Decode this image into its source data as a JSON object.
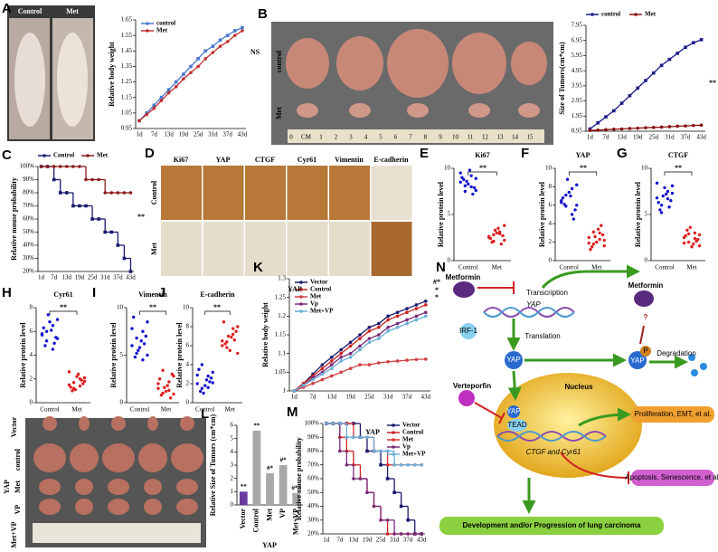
{
  "chart_data": [
    {
      "panel": "A",
      "type": "line",
      "ylabel": "Relative body weight",
      "categories": [
        "1d",
        null,
        "7d",
        null,
        "13d",
        null,
        "19d",
        null,
        "25d",
        null,
        "31d",
        null,
        "37d",
        null,
        "43d"
      ],
      "series": [
        {
          "name": "control",
          "color": "#4a78d0",
          "marker": "square",
          "values": [
            1.0,
            1.05,
            1.1,
            1.15,
            1.2,
            1.25,
            1.3,
            1.35,
            1.4,
            1.45,
            1.48,
            1.52,
            1.55,
            1.58,
            1.6
          ]
        },
        {
          "name": "Met",
          "color": "#c03030",
          "marker": "circle",
          "values": [
            1.0,
            1.04,
            1.08,
            1.13,
            1.18,
            1.22,
            1.27,
            1.31,
            1.35,
            1.4,
            1.44,
            1.48,
            1.51,
            1.55,
            1.58
          ]
        }
      ],
      "ylim": [
        0.95,
        1.65
      ],
      "yticks": [
        0.95,
        1.05,
        1.15,
        1.25,
        1.35,
        1.45,
        1.55,
        1.65
      ],
      "legend": "upper left",
      "annotations": [
        "NS"
      ]
    },
    {
      "panel": "B",
      "type": "line",
      "ylabel": "Size of Tumors(cm*cm)",
      "categories": [
        "1d",
        null,
        "7d",
        null,
        "13d",
        null,
        "19d",
        null,
        "25d",
        null,
        "31d",
        null,
        "37d",
        null,
        "43d"
      ],
      "series": [
        {
          "name": "control",
          "color": "#1a1a8a",
          "marker": "square",
          "values": [
            1.1,
            1.5,
            1.9,
            2.3,
            2.8,
            3.3,
            3.8,
            4.3,
            4.8,
            5.3,
            5.7,
            6.1,
            6.5,
            6.8,
            7.0
          ]
        },
        {
          "name": "Met",
          "color": "#8a1010",
          "marker": "circle",
          "values": [
            1.0,
            1.02,
            1.05,
            1.08,
            1.1,
            1.13,
            1.15,
            1.18,
            1.2,
            1.22,
            1.25,
            1.28,
            1.3,
            1.33,
            1.35
          ]
        }
      ],
      "ylim": [
        0.95,
        7.95
      ],
      "yticks": [
        0.95,
        1.95,
        2.95,
        3.95,
        4.95,
        5.95,
        6.95,
        7.95
      ],
      "legend": "top",
      "annotations": [
        "**"
      ]
    },
    {
      "panel": "C",
      "type": "line",
      "step": true,
      "ylabel": "Relative mouse probability",
      "categories": [
        "1d",
        null,
        "7d",
        null,
        "13d",
        null,
        "19d",
        null,
        "25d",
        null,
        "31d",
        null,
        "37d",
        null,
        "43d"
      ],
      "series": [
        {
          "name": "Control",
          "color": "#1a1a70",
          "marker": "square",
          "values": [
            100,
            100,
            90,
            80,
            80,
            70,
            70,
            70,
            60,
            60,
            50,
            50,
            40,
            30,
            20
          ]
        },
        {
          "name": "Met",
          "color": "#8b1a1a",
          "marker": "circle",
          "values": [
            100,
            100,
            100,
            100,
            100,
            100,
            100,
            90,
            90,
            90,
            80,
            80,
            80,
            80,
            80
          ]
        }
      ],
      "ylim": [
        20,
        100
      ],
      "yticks": [
        {
          "value": 20,
          "label": "20%"
        },
        {
          "value": 30,
          "label": "30%"
        },
        {
          "value": 40,
          "label": "40%"
        },
        {
          "value": 50,
          "label": "50%"
        },
        {
          "value": 60,
          "label": "60%"
        },
        {
          "value": 70,
          "label": "70%"
        },
        {
          "value": 80,
          "label": "80%"
        },
        {
          "value": 90,
          "label": "90%"
        },
        {
          "value": 100,
          "label": "100%"
        }
      ],
      "legend": "top",
      "annotations": [
        "**"
      ]
    },
    {
      "panel": "E",
      "type": "strip",
      "title": "Ki67",
      "ylabel": "Relative protein level",
      "categories": [
        "Control",
        "Met"
      ],
      "colors": [
        "#1515d0",
        "#e02020"
      ],
      "values": [
        [
          8.5,
          9.2,
          8.1,
          7.6,
          9.8,
          8.8,
          7.9,
          8.3,
          9.0,
          7.2,
          8.6,
          9.5,
          8.0,
          7.5,
          8.9
        ],
        [
          2.5,
          3.1,
          2.8,
          2.2,
          3.5,
          2.0,
          2.7,
          3.0,
          2.4,
          1.8,
          3.3,
          2.6,
          2.9,
          2.1,
          3.8
        ]
      ],
      "ylim": [
        0,
        10
      ],
      "yticks": [
        0,
        5,
        10
      ],
      "annotations": [
        "**"
      ]
    },
    {
      "panel": "F",
      "type": "strip",
      "title": "YAP",
      "ylabel": "Relative protein level",
      "categories": [
        "Control",
        "Met"
      ],
      "colors": [
        "#1515d0",
        "#e02020"
      ],
      "values": [
        [
          6.5,
          7.8,
          5.9,
          8.2,
          7.0,
          6.1,
          5.5,
          7.4,
          6.8,
          4.5,
          8.8,
          6.3,
          5.0,
          7.1,
          6.0
        ],
        [
          2.5,
          3.0,
          1.8,
          2.2,
          3.4,
          1.5,
          2.8,
          2.0,
          1.2,
          3.8,
          2.6,
          1.9,
          2.3,
          3.1,
          1.6
        ]
      ],
      "ylim": [
        0,
        10
      ],
      "yticks": [
        0,
        2,
        4,
        6,
        8,
        10
      ],
      "annotations": [
        "**"
      ]
    },
    {
      "panel": "G",
      "type": "strip",
      "title": "CTGF",
      "ylabel": "Relative protein level",
      "categories": [
        "Control",
        "Met"
      ],
      "colors": [
        "#1515d0",
        "#e02020"
      ],
      "values": [
        [
          6.8,
          7.5,
          6.0,
          8.1,
          7.2,
          5.5,
          6.5,
          7.9,
          6.3,
          5.8,
          7.0,
          8.4,
          6.7,
          5.2,
          7.3
        ],
        [
          2.5,
          3.0,
          2.0,
          2.8,
          1.8,
          3.3,
          2.3,
          1.5,
          2.7,
          2.1,
          3.6,
          1.9,
          2.4,
          2.9,
          1.6
        ]
      ],
      "ylim": [
        0,
        10
      ],
      "yticks": [
        0,
        5,
        10
      ],
      "annotations": [
        "**"
      ]
    },
    {
      "panel": "H",
      "type": "strip",
      "title": "Cyr61",
      "ylabel": "Relative protein level",
      "categories": [
        "Control",
        "Met"
      ],
      "colors": [
        "#1515d0",
        "#e02020"
      ],
      "values": [
        [
          5.8,
          6.5,
          5.2,
          7.0,
          6.1,
          4.8,
          5.5,
          6.8,
          6.3,
          5.0,
          7.4,
          5.7,
          4.5,
          6.0,
          5.4
        ],
        [
          1.5,
          2.0,
          1.2,
          1.8,
          2.4,
          1.0,
          1.6,
          2.2,
          1.3,
          1.9,
          1.1,
          2.6,
          1.4,
          1.7,
          2.1
        ]
      ],
      "ylim": [
        0,
        8
      ],
      "yticks": [
        0,
        2,
        4,
        6,
        8
      ],
      "annotations": [
        "**"
      ]
    },
    {
      "panel": "I",
      "type": "strip",
      "title": "Vimentin",
      "ylabel": "Relative protein level",
      "categories": [
        "Control",
        "Met"
      ],
      "colors": [
        "#1515d0",
        "#e02020"
      ],
      "values": [
        [
          6.0,
          7.5,
          5.2,
          8.5,
          6.5,
          4.8,
          7.0,
          5.8,
          9.0,
          6.2,
          5.5,
          7.8,
          4.5,
          6.8,
          5.0
        ],
        [
          1.5,
          2.2,
          1.0,
          2.8,
          1.8,
          0.8,
          3.0,
          1.2,
          2.5,
          0.5,
          1.6,
          2.0,
          1.3,
          3.4,
          0.9
        ]
      ],
      "ylim": [
        0,
        10
      ],
      "yticks": [
        0,
        5,
        10
      ],
      "annotations": [
        "**"
      ]
    },
    {
      "panel": "J",
      "type": "strip",
      "title": "E-cadherin",
      "ylabel": "Relative protein level",
      "categories": [
        "Control",
        "Met"
      ],
      "colors": [
        "#1515d0",
        "#e02020"
      ],
      "values": [
        [
          2.0,
          2.8,
          1.5,
          3.2,
          2.4,
          1.2,
          2.6,
          1.8,
          3.5,
          2.2,
          1.0,
          2.9,
          1.6,
          4.0,
          2.1
        ],
        [
          6.5,
          7.2,
          5.8,
          8.0,
          6.9,
          6.2,
          7.5,
          5.5,
          8.5,
          6.6,
          7.0,
          6.0,
          7.8,
          6.4,
          5.2
        ]
      ],
      "ylim": [
        0,
        10
      ],
      "yticks": [
        0,
        2,
        4,
        6,
        8,
        10
      ],
      "annotations": [
        "**"
      ]
    },
    {
      "panel": "K",
      "type": "line",
      "ylabel": "Relative body weight",
      "categories": [
        "1d",
        null,
        "7d",
        null,
        "13d",
        null,
        "19d",
        null,
        "25d",
        null,
        "31d",
        null,
        "37d",
        null,
        "43d"
      ],
      "series": [
        {
          "name": "Vector",
          "color": "#1a1a6e",
          "marker": "circle",
          "values": [
            1.0,
            1.02,
            1.045,
            1.07,
            1.09,
            1.11,
            1.13,
            1.15,
            1.17,
            1.18,
            1.2,
            1.21,
            1.22,
            1.23,
            1.24
          ]
        },
        {
          "name": "Control",
          "color": "#cc2222",
          "marker": "circle",
          "values": [
            1.0,
            1.02,
            1.04,
            1.06,
            1.08,
            1.1,
            1.12,
            1.14,
            1.16,
            1.17,
            1.19,
            1.2,
            1.21,
            1.22,
            1.23
          ]
        },
        {
          "name": "Met",
          "color": "#d04040",
          "marker": "circle",
          "values": [
            1.0,
            1.01,
            1.02,
            1.03,
            1.04,
            1.05,
            1.06,
            1.07,
            1.07,
            1.075,
            1.078,
            1.08,
            1.082,
            1.084,
            1.085
          ]
        },
        {
          "name": "Vp",
          "color": "#7a2a7a",
          "marker": "circle",
          "values": [
            1.0,
            1.015,
            1.035,
            1.05,
            1.07,
            1.09,
            1.1,
            1.12,
            1.14,
            1.15,
            1.17,
            1.18,
            1.19,
            1.2,
            1.21
          ]
        },
        {
          "name": "Met+VP",
          "color": "#6aaed6",
          "marker": "circle",
          "values": [
            1.0,
            1.015,
            1.03,
            1.045,
            1.06,
            1.08,
            1.09,
            1.11,
            1.13,
            1.14,
            1.16,
            1.17,
            1.18,
            1.19,
            1.2
          ]
        }
      ],
      "ylim": [
        1,
        1.3
      ],
      "yticks": [
        1,
        1.05,
        1.1,
        1.15,
        1.2,
        1.25,
        1.3
      ],
      "legend": "upper left",
      "annotations": [
        "#*",
        "*",
        "*",
        "YAP"
      ]
    },
    {
      "panel": "L",
      "type": "bar",
      "ylabel": "Relative Size of Tumors (cm*cm)",
      "categories": [
        "Vector",
        "Control",
        "Met",
        "VP",
        "Met+VP"
      ],
      "values": [
        1.0,
        5.6,
        2.4,
        3.0,
        0.9
      ],
      "value_labels": [
        "**",
        "**",
        "#*",
        "#*",
        "#**"
      ],
      "colors": [
        "#6a3aa0",
        "#a8a8a8",
        "#a8a8a8",
        "#a8a8a8",
        "#a8a8a8"
      ],
      "ylim": [
        0,
        6
      ],
      "yticks": [
        0,
        1,
        2,
        3,
        4,
        5,
        6
      ],
      "annotations": [
        "YAP"
      ]
    },
    {
      "panel": "M",
      "type": "line",
      "step": true,
      "ylabel": "Relative mouse probability",
      "categories": [
        "1d",
        null,
        "7d",
        null,
        "13d",
        null,
        "19d",
        null,
        "25d",
        null,
        "31d",
        null,
        "37d",
        null,
        "43d"
      ],
      "series": [
        {
          "name": "Vector",
          "color": "#1a1a6e",
          "marker": "square",
          "values": [
            100,
            100,
            100,
            100,
            100,
            90,
            80,
            80,
            70,
            60,
            50,
            40,
            30,
            20,
            20
          ]
        },
        {
          "name": "Control",
          "color": "#cc2222",
          "marker": "circle",
          "values": [
            100,
            100,
            90,
            80,
            70,
            60,
            50,
            40,
            30,
            20,
            20,
            20,
            20,
            20,
            20
          ]
        },
        {
          "name": "Met",
          "color": "#e03030",
          "marker": "circle",
          "values": [
            100,
            100,
            100,
            100,
            90,
            90,
            90,
            80,
            80,
            70,
            70,
            70,
            70,
            70,
            70
          ]
        },
        {
          "name": "Vp",
          "color": "#7a2a7a",
          "marker": "circle",
          "values": [
            100,
            100,
            80,
            70,
            60,
            60,
            50,
            40,
            30,
            30,
            20,
            20,
            20,
            20,
            20
          ]
        },
        {
          "name": "Met+VP",
          "color": "#6aaed6",
          "marker": "circle",
          "values": [
            100,
            100,
            100,
            90,
            90,
            90,
            90,
            80,
            80,
            80,
            70,
            70,
            70,
            70,
            70
          ]
        }
      ],
      "ylim": [
        20,
        100
      ],
      "yticks": [
        {
          "value": 20,
          "label": "20%"
        },
        {
          "value": 30,
          "label": "30%"
        },
        {
          "value": 40,
          "label": "40%"
        },
        {
          "value": 50,
          "label": "50%"
        },
        {
          "value": 60,
          "label": "60%"
        },
        {
          "value": 70,
          "label": "70%"
        },
        {
          "value": 80,
          "label": "80%"
        },
        {
          "value": 90,
          "label": "90%"
        },
        {
          "value": 100,
          "label": "100%"
        }
      ],
      "legend": "upper right",
      "annotations": [
        "YAP"
      ]
    }
  ],
  "photos": {
    "A": {
      "labels": [
        "Control",
        "Met"
      ]
    },
    "B": {
      "rows": [
        "control",
        "Met"
      ],
      "ruler": [
        "0",
        "CM",
        "1",
        "2",
        "3",
        "4",
        "5",
        "6",
        "7",
        "8",
        "9",
        "10",
        "11",
        "12",
        "13",
        "14",
        "15"
      ]
    },
    "D": {
      "panel": "D",
      "columns": [
        "Ki67",
        "YAP",
        "CTGF",
        "Cyr61",
        "Vimentin",
        "E-cadherin"
      ],
      "rows": [
        "Control",
        "Met"
      ]
    },
    "L": {
      "rows": [
        "Vector",
        "control",
        "Met",
        "VP",
        "Met+VP"
      ],
      "group": "YAP"
    }
  },
  "diagram": {
    "panel": "N",
    "labels": [
      "Metformin",
      "Transcription",
      "YAP",
      "IRF-1",
      "Translation",
      "Metformin",
      "?",
      "P",
      "Degradation",
      "YAP",
      "YAP",
      "Nucleus",
      "Verteporfin",
      "YAP",
      "TEAD",
      "CTGF and Cyr61",
      "Proliferation, EMT, et al.",
      "Apoptosis, Senescence, et al.",
      "Development and/or Progression of lung carcinoma"
    ]
  }
}
